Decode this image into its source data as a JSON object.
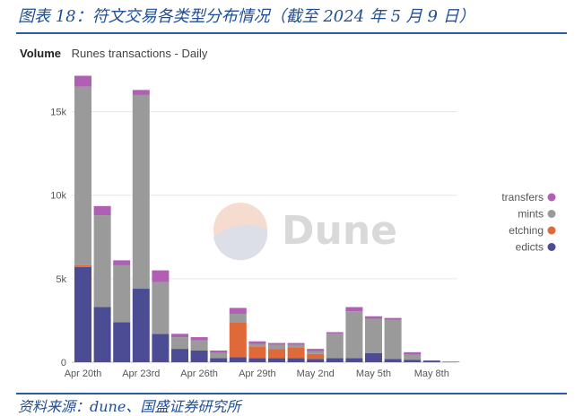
{
  "figure": {
    "title": "图表 18：符文交易各类型分布情况（截至 2024 年 5 月 9 日）",
    "source": "资料来源：dune、国盛证券研究所"
  },
  "panel": {
    "metric": "Volume",
    "subtitle": "Runes transactions - Daily"
  },
  "watermark": {
    "text": "Dune"
  },
  "colors": {
    "transfers": "#b15fb5",
    "mints": "#9a9a9a",
    "etching": "#e0693a",
    "edicts": "#4c4c94",
    "title_blue": "#1f4e96",
    "grid": "#e6e6e6"
  },
  "chart_data": {
    "type": "bar",
    "stacked": true,
    "categories": [
      "Apr 20",
      "Apr 21",
      "Apr 22",
      "Apr 23",
      "Apr 24",
      "Apr 25",
      "Apr 26",
      "Apr 27",
      "Apr 28",
      "Apr 29",
      "Apr 30",
      "May 1",
      "May 2",
      "May 3",
      "May 4",
      "May 5",
      "May 6",
      "May 7",
      "May 8",
      "May 9"
    ],
    "x_tick_labels": [
      "Apr 20th",
      "Apr 23rd",
      "Apr 26th",
      "Apr 29th",
      "May 2nd",
      "May 5th",
      "May 8th"
    ],
    "x_tick_indices": [
      0,
      3,
      6,
      9,
      12,
      15,
      18
    ],
    "series": [
      {
        "name": "edicts",
        "values": [
          5700,
          3300,
          2400,
          4400,
          1700,
          800,
          700,
          250,
          300,
          250,
          250,
          250,
          200,
          250,
          250,
          550,
          200,
          150,
          100,
          30
        ]
      },
      {
        "name": "etching",
        "values": [
          100,
          0,
          0,
          0,
          0,
          0,
          0,
          0,
          2100,
          700,
          550,
          650,
          300,
          0,
          0,
          0,
          0,
          0,
          0,
          0
        ]
      },
      {
        "name": "mints",
        "values": [
          10700,
          5500,
          3400,
          11600,
          3100,
          700,
          600,
          300,
          500,
          150,
          250,
          150,
          150,
          1450,
          2800,
          2050,
          2350,
          300,
          0,
          0
        ]
      },
      {
        "name": "transfers",
        "values": [
          650,
          550,
          300,
          300,
          700,
          200,
          200,
          150,
          350,
          150,
          100,
          100,
          150,
          100,
          250,
          150,
          100,
          150,
          0,
          0
        ]
      }
    ],
    "legend_order": [
      "transfers",
      "mints",
      "etching",
      "edicts"
    ],
    "legend_position": "right",
    "y_ticks": [
      0,
      5000,
      10000,
      15000
    ],
    "y_tick_labels": [
      "0",
      "5k",
      "10k",
      "15k"
    ],
    "ylim": [
      0,
      17500
    ],
    "grid": true
  }
}
